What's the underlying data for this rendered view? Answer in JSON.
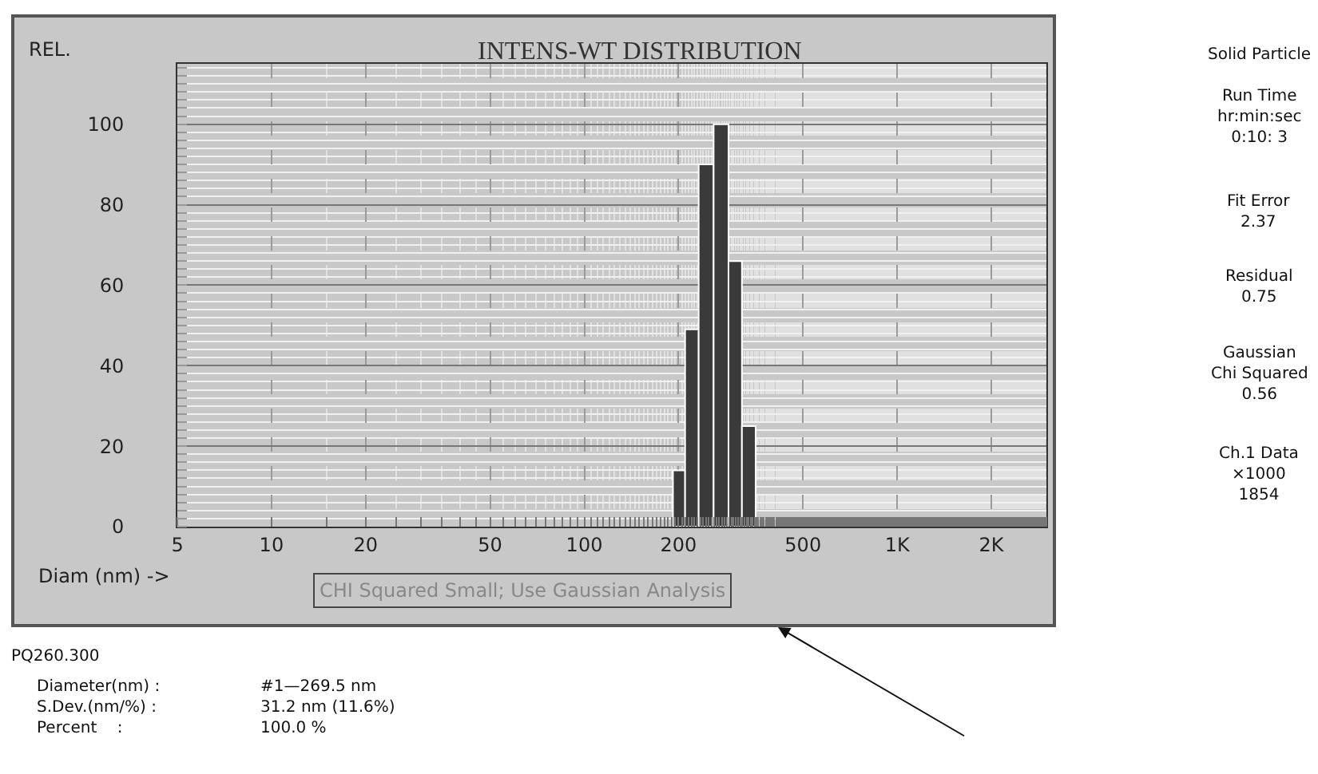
{
  "chart_data": {
    "type": "histogram",
    "title": "INTENS-WT DISTRIBUTION",
    "ylabel": "REL.",
    "xlabel": "Diam (nm) ->",
    "bins": [
      192,
      210,
      232,
      259,
      289,
      319,
      353
    ],
    "values": [
      14,
      49,
      90,
      100,
      66,
      25
    ],
    "color": "#3a3a3a",
    "log": "x",
    "xlim": [
      5,
      3000
    ],
    "xticks": [
      5,
      10,
      20,
      50,
      100,
      200,
      500,
      {
        "value": 1000,
        "label": "1K"
      },
      {
        "value": 2000,
        "label": "2K"
      }
    ],
    "ylim": [
      0,
      115
    ],
    "yticks": [
      0,
      20,
      40,
      60,
      80,
      100
    ],
    "grid": true,
    "annotations": [
      "CHI Squared Small; Use Gaussian Analysis",
      "Solid Particle",
      "Run Time\nhr:min:sec\n0:10: 3",
      "Fit Error\n2.37",
      "Residual\n0.75",
      "Gaussian\nChi Squared\n0.56",
      "Ch.1 Data\n×1000\n1854",
      "PQ260.300",
      "Diameter(nm) :\nS.Dev.(nm/%) :\nPercent    :",
      "#1—269.5 nm\n31.2 nm (11.6%)\n100.0 %"
    ]
  }
}
